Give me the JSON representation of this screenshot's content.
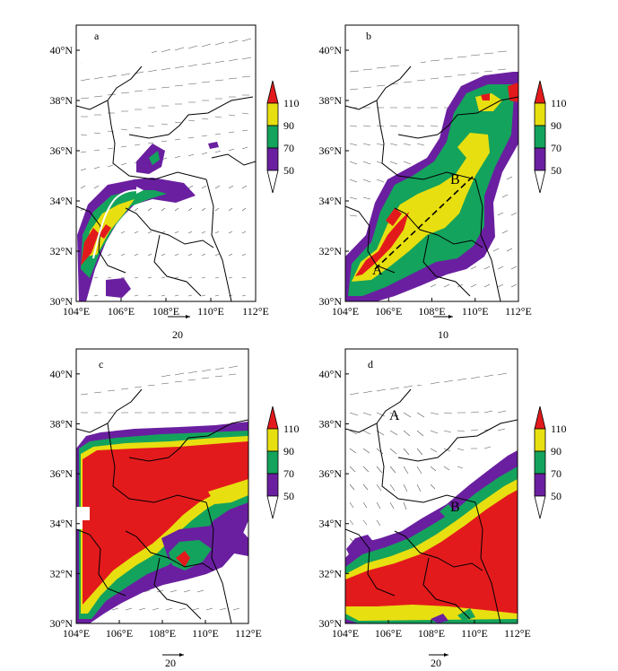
{
  "panels": [
    {
      "id": "a",
      "label": "a",
      "ref_vector": "20",
      "point_labels": []
    },
    {
      "id": "b",
      "label": "b",
      "ref_vector": "10",
      "point_labels": [
        "A",
        "B"
      ]
    },
    {
      "id": "c",
      "label": "c",
      "ref_vector": "20",
      "point_labels": []
    },
    {
      "id": "d",
      "label": "d",
      "ref_vector": "20",
      "point_labels": [
        "A",
        "B"
      ]
    }
  ],
  "axes": {
    "lat_ticks": [
      "30°N",
      "32°N",
      "34°N",
      "36°N",
      "38°N",
      "40°N"
    ],
    "lon_ticks": [
      "104°E",
      "106°E",
      "108°E",
      "110°E",
      "112°E"
    ],
    "lat_values": [
      30,
      32,
      34,
      36,
      38,
      40
    ],
    "lon_values": [
      104,
      106,
      108,
      110,
      112
    ],
    "lat_range": [
      30,
      41
    ],
    "lon_range": [
      104,
      112
    ]
  },
  "colorbar": {
    "labels": [
      "110",
      "90",
      "70",
      "50"
    ],
    "levels": [
      50,
      70,
      90,
      110
    ],
    "colors": [
      "#ffffff",
      "#6a1fa0",
      "#14a35c",
      "#e8df10",
      "#e31a1c"
    ]
  }
}
